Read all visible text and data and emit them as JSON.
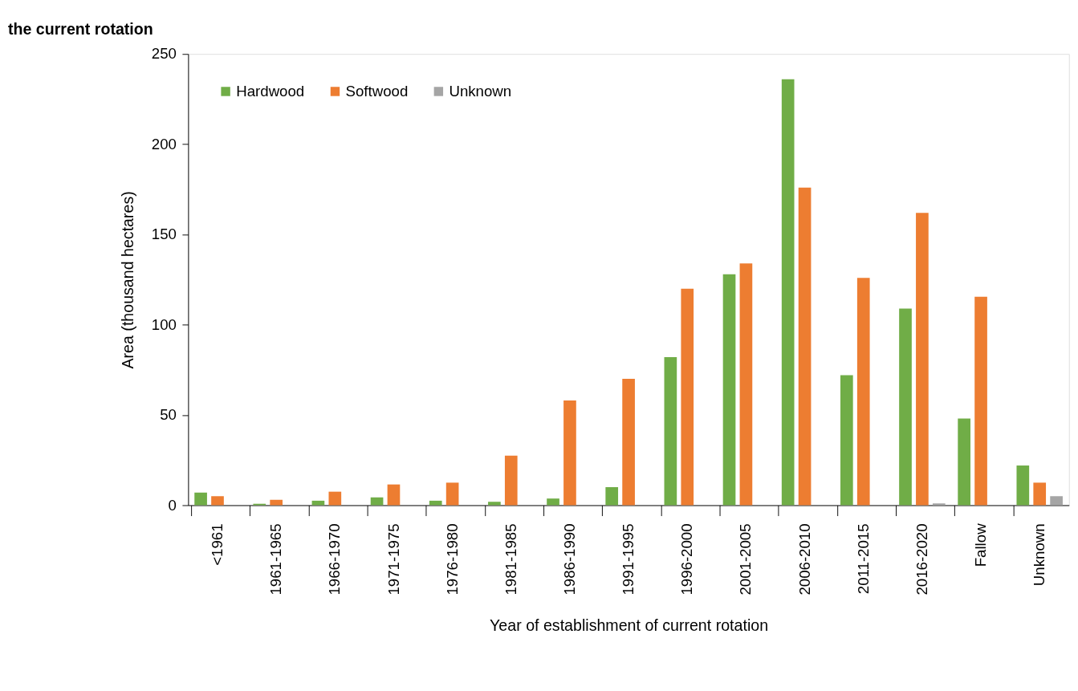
{
  "chart_data": {
    "type": "bar",
    "title": "the current rotation",
    "xlabel": "Year of establishment of current rotation",
    "ylabel": "Area (thousand hectares)",
    "categories": [
      "<1961",
      "1961-1965",
      "1966-1970",
      "1971-1975",
      "1976-1980",
      "1981-1985",
      "1986-1990",
      "1991-1995",
      "1996-2000",
      "2001-2005",
      "2006-2010",
      "2011-2015",
      "2016-2020",
      "Fallow",
      "Unknown"
    ],
    "series": [
      {
        "name": "Hardwood",
        "color": "#70ad47",
        "values": [
          7,
          0.8,
          2.5,
          4.3,
          2.5,
          1.9,
          3.7,
          10,
          82,
          128,
          236,
          72,
          109,
          48,
          22
        ]
      },
      {
        "name": "Softwood",
        "color": "#ed7d31",
        "values": [
          5,
          3,
          7.5,
          11.5,
          12.5,
          27.5,
          58,
          70,
          120,
          134,
          176,
          126,
          162,
          115.5,
          12.5
        ]
      },
      {
        "name": "Unknown",
        "color": "#a5a5a5",
        "values": [
          null,
          null,
          null,
          null,
          null,
          null,
          null,
          null,
          null,
          null,
          null,
          null,
          1,
          null,
          5
        ]
      }
    ],
    "ylim": [
      0,
      250
    ],
    "yticks": [
      0,
      50,
      100,
      150,
      200,
      250
    ],
    "grid": false,
    "legend": "top left"
  }
}
